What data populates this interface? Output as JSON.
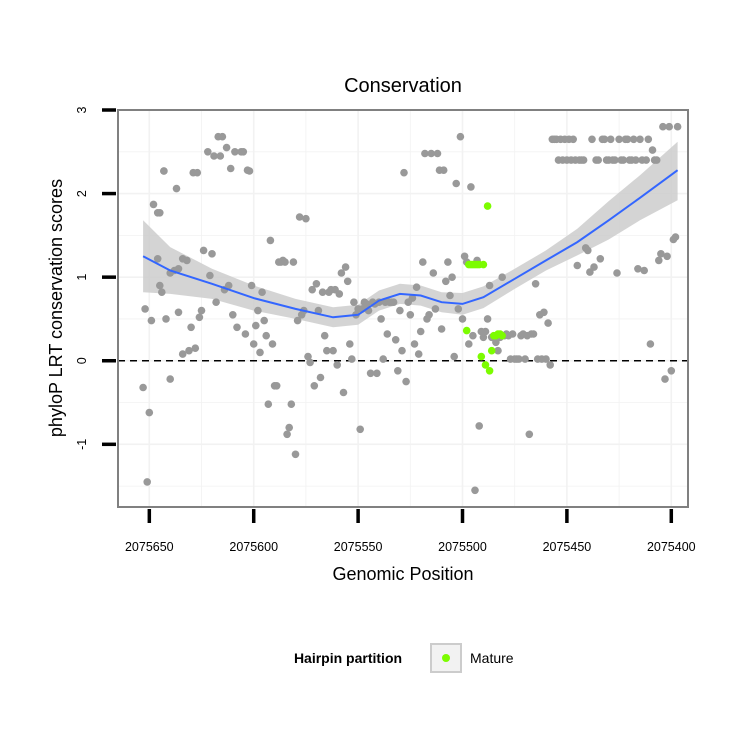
{
  "chart_data": {
    "type": "scatter",
    "title": "Conservation",
    "xlabel": "Genomic Position",
    "ylabel": "phyloP LRT conservation scores",
    "x_reversed": true,
    "xlim": [
      2075665,
      2075392
    ],
    "ylim": [
      -1.75,
      3.0
    ],
    "x_ticks": [
      2075650,
      2075600,
      2075550,
      2075500,
      2075450,
      2075400
    ],
    "y_ticks": [
      -1,
      0,
      1,
      2,
      3
    ],
    "reference_line": {
      "y": 0,
      "style": "dashed"
    },
    "grid": true,
    "colors": {
      "background_points": "#999999",
      "mature": "#7cfc00",
      "smooth": "#3366ff",
      "band": "#cccccc",
      "panel_border": "#808080",
      "grid": "#f2f2f2"
    },
    "series": [
      {
        "role": "background",
        "x": [
          2075653,
          2075652,
          2075651,
          2075650,
          2075649,
          2075648,
          2075646,
          2075645,
          2075646,
          2075645,
          2075644,
          2075643,
          2075643,
          2075642,
          2075640,
          2075640,
          2075638,
          2075637,
          2075636,
          2075636,
          2075634,
          2075634,
          2075632,
          2075631,
          2075630,
          2075629,
          2075628,
          2075627,
          2075626,
          2075625,
          2075624,
          2075622,
          2075621,
          2075620,
          2075619,
          2075618,
          2075617,
          2075616,
          2075615,
          2075614,
          2075613,
          2075612,
          2075611,
          2075610,
          2075609,
          2075608,
          2075606,
          2075605,
          2075604,
          2075603,
          2075602,
          2075601,
          2075600,
          2075599,
          2075598,
          2075597,
          2075596,
          2075595,
          2075594,
          2075593,
          2075592,
          2075591,
          2075590,
          2075589,
          2075588,
          2075587,
          2075586,
          2075585,
          2075584,
          2075583,
          2075582,
          2075581,
          2075580,
          2075579,
          2075578,
          2075577,
          2075576,
          2075575,
          2075574,
          2075573,
          2075572,
          2075571,
          2075570,
          2075569,
          2075568,
          2075567,
          2075566,
          2075565,
          2075564,
          2075563,
          2075562,
          2075561,
          2075560,
          2075559,
          2075558,
          2075557,
          2075556,
          2075555,
          2075554,
          2075553,
          2075552,
          2075551,
          2075550,
          2075549,
          2075548,
          2075547,
          2075546,
          2075545,
          2075544,
          2075543,
          2075542,
          2075541,
          2075540,
          2075539,
          2075538,
          2075537,
          2075536,
          2075535,
          2075534,
          2075533,
          2075532,
          2075531,
          2075530,
          2075529,
          2075528,
          2075527,
          2075526,
          2075525,
          2075524,
          2075523,
          2075522,
          2075521,
          2075520,
          2075519,
          2075518,
          2075517,
          2075516,
          2075515,
          2075514,
          2075513,
          2075512,
          2075511,
          2075510,
          2075509,
          2075508,
          2075507,
          2075506,
          2075505,
          2075504,
          2075503,
          2075502,
          2075501,
          2075500,
          2075499,
          2075498,
          2075497,
          2075496,
          2075495,
          2075494,
          2075493,
          2075492,
          2075491,
          2075490,
          2075489,
          2075488,
          2075487,
          2075486,
          2075485,
          2075484,
          2075483,
          2075482,
          2075481,
          2075480,
          2075479,
          2075478,
          2075477,
          2075476,
          2075475,
          2075474,
          2075473,
          2075472,
          2075471,
          2075470,
          2075469,
          2075468,
          2075467,
          2075466,
          2075465,
          2075464,
          2075463,
          2075462,
          2075461,
          2075460,
          2075459,
          2075458,
          2075457,
          2075456,
          2075455,
          2075454,
          2075453,
          2075452,
          2075451,
          2075450,
          2075449,
          2075448,
          2075447,
          2075446,
          2075445,
          2075444,
          2075443,
          2075442,
          2075441,
          2075440,
          2075439,
          2075438,
          2075437,
          2075436,
          2075435,
          2075434,
          2075433,
          2075432,
          2075431,
          2075430,
          2075429,
          2075428,
          2075427,
          2075426,
          2075425,
          2075424,
          2075423,
          2075422,
          2075421,
          2075420,
          2075419,
          2075418,
          2075417,
          2075416,
          2075415,
          2075414,
          2075413,
          2075412,
          2075411,
          2075410,
          2075409,
          2075408,
          2075407,
          2075406,
          2075405,
          2075404,
          2075403,
          2075402,
          2075401,
          2075400,
          2075399,
          2075398,
          2075397
        ],
        "y": [
          -0.32,
          0.62,
          -1.45,
          -0.62,
          0.48,
          1.87,
          1.22,
          1.77,
          1.77,
          0.9,
          0.82,
          2.27,
          2.27,
          0.5,
          1.05,
          -0.22,
          1.08,
          2.06,
          0.58,
          1.1,
          1.22,
          0.08,
          1.2,
          0.12,
          0.4,
          2.25,
          0.15,
          2.25,
          0.52,
          0.6,
          1.32,
          2.5,
          1.02,
          1.28,
          2.45,
          0.7,
          2.68,
          2.45,
          2.68,
          0.85,
          2.55,
          0.9,
          2.3,
          0.55,
          2.5,
          0.4,
          2.5,
          2.5,
          0.32,
          2.28,
          2.27,
          0.9,
          0.2,
          0.42,
          0.6,
          0.1,
          0.82,
          0.48,
          0.3,
          -0.52,
          1.44,
          0.2,
          -0.3,
          -0.3,
          1.18,
          1.18,
          1.2,
          1.18,
          -0.88,
          -0.8,
          -0.52,
          1.18,
          -1.12,
          0.48,
          1.72,
          0.55,
          0.6,
          1.7,
          0.05,
          -0.02,
          0.85,
          -0.3,
          0.92,
          0.6,
          -0.2,
          0.82,
          0.3,
          0.12,
          0.82,
          0.85,
          0.12,
          0.85,
          -0.05,
          0.8,
          1.05,
          -0.38,
          1.12,
          0.95,
          0.2,
          0.02,
          0.7,
          0.55,
          0.62,
          -0.82,
          0.62,
          0.7,
          0.68,
          0.6,
          -0.15,
          0.7,
          0.68,
          -0.15,
          0.7,
          0.5,
          0.02,
          0.7,
          0.32,
          0.7,
          0.7,
          0.7,
          0.25,
          -0.12,
          0.6,
          0.12,
          2.25,
          -0.25,
          0.7,
          0.55,
          0.75,
          0.2,
          0.88,
          0.08,
          0.35,
          1.18,
          2.48,
          0.5,
          0.55,
          2.48,
          1.05,
          0.62,
          2.48,
          2.28,
          0.38,
          2.28,
          0.95,
          1.18,
          0.78,
          1.0,
          0.05,
          2.12,
          0.62,
          2.68,
          0.5,
          1.25,
          1.18,
          0.2,
          2.08,
          0.3,
          -1.55,
          1.2,
          -0.78,
          0.35,
          0.28,
          0.35,
          0.5,
          0.9,
          0.28,
          0.28,
          0.22,
          0.12,
          0.28,
          1.0,
          0.3,
          0.32,
          0.3,
          0.02,
          0.32,
          0.02,
          0.02,
          0.02,
          0.3,
          0.32,
          0.02,
          0.3,
          -0.88,
          0.32,
          0.32,
          0.92,
          0.02,
          0.55,
          0.02,
          0.58,
          0.02,
          0.45,
          -0.05,
          2.65,
          2.65,
          2.65,
          2.4,
          2.65,
          2.4,
          2.65,
          2.4,
          2.65,
          2.4,
          2.65,
          2.4,
          1.14,
          2.4,
          2.4,
          2.4,
          1.35,
          1.32,
          1.06,
          2.65,
          1.12,
          2.4,
          2.4,
          1.22,
          2.65,
          2.65,
          2.4,
          2.4,
          2.65,
          2.4,
          2.4,
          1.05,
          2.65,
          2.4,
          2.4,
          2.65,
          2.65,
          2.4,
          2.4,
          2.65,
          2.4,
          1.1,
          2.65,
          2.4,
          1.08,
          2.4,
          2.65,
          0.2,
          2.52,
          2.4,
          2.4,
          1.2,
          1.28,
          2.8,
          -0.22,
          1.25,
          2.8,
          -0.12,
          1.45,
          1.48,
          2.8
        ]
      },
      {
        "name": "Mature",
        "x": [
          2075498,
          2075497,
          2075496,
          2075495,
          2075494,
          2075493,
          2075492,
          2075491,
          2075490,
          2075489,
          2075488,
          2075487,
          2075486,
          2075485,
          2075484,
          2075483,
          2075482,
          2075481
        ],
        "y": [
          0.36,
          1.15,
          1.15,
          1.15,
          1.15,
          1.15,
          1.15,
          0.05,
          1.15,
          -0.05,
          1.85,
          -0.12,
          0.12,
          0.3,
          0.3,
          0.32,
          0.32,
          0.3
        ]
      }
    ],
    "smooth": {
      "x": [
        2075653,
        2075640,
        2075620,
        2075600,
        2075580,
        2075562,
        2075550,
        2075540,
        2075530,
        2075520,
        2075510,
        2075500,
        2075490,
        2075475,
        2075460,
        2075445,
        2075430,
        2075415,
        2075397
      ],
      "y": [
        1.25,
        1.08,
        0.92,
        0.75,
        0.62,
        0.52,
        0.55,
        0.72,
        0.8,
        0.78,
        0.7,
        0.68,
        0.76,
        0.98,
        1.2,
        1.42,
        1.68,
        1.95,
        2.28
      ],
      "lower": [
        0.82,
        0.8,
        0.74,
        0.6,
        0.5,
        0.4,
        0.43,
        0.6,
        0.68,
        0.66,
        0.58,
        0.55,
        0.63,
        0.86,
        1.08,
        1.26,
        1.45,
        1.68,
        1.92
      ],
      "upper": [
        1.68,
        1.36,
        1.1,
        0.9,
        0.74,
        0.64,
        0.67,
        0.84,
        0.92,
        0.9,
        0.82,
        0.81,
        0.89,
        1.1,
        1.32,
        1.58,
        1.91,
        2.22,
        2.62
      ]
    },
    "legend": {
      "title": "Hairpin partition",
      "entries": [
        {
          "label": "Mature",
          "color": "#7cfc00"
        }
      ],
      "placement": "bottom"
    }
  }
}
